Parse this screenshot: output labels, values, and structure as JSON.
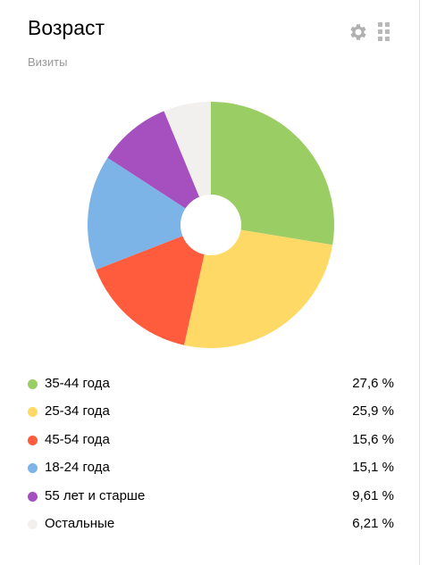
{
  "header": {
    "title": "Возраст",
    "subtitle": "Визиты",
    "settings_icon": "gear-icon",
    "drag_icon": "drag-handle-icon"
  },
  "chart_data": {
    "type": "pie",
    "title": "Возраст",
    "subtitle": "Визиты",
    "donut": true,
    "categories": [
      "35-44 года",
      "25-34 года",
      "45-54 года",
      "18-24 года",
      "55 лет и старше",
      "Остальные"
    ],
    "values": [
      27.6,
      25.9,
      15.6,
      15.1,
      9.61,
      6.21
    ],
    "value_labels": [
      "27,6 %",
      "25,9 %",
      "15,6 %",
      "15,1 %",
      "9,61 %",
      "6,21 %"
    ],
    "colors": [
      "#9bcd65",
      "#ffd966",
      "#ff5b3d",
      "#7cb4e7",
      "#a64fbf",
      "#f2f0ee"
    ],
    "legend_position": "bottom"
  },
  "legend": [
    {
      "label": "35-44 года",
      "value": "27,6 %"
    },
    {
      "label": "25-34 года",
      "value": "25,9 %"
    },
    {
      "label": "45-54 года",
      "value": "15,6 %"
    },
    {
      "label": "18-24 года",
      "value": "15,1 %"
    },
    {
      "label": "55 лет и старше",
      "value": "9,61 %"
    },
    {
      "label": "Остальные",
      "value": "6,21 %"
    }
  ]
}
